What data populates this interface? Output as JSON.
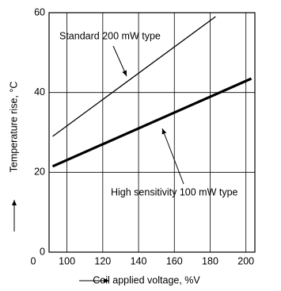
{
  "chart_data": {
    "type": "line",
    "xlabel": "Coil applied voltage, %V",
    "ylabel": "Temperature rise, °C",
    "annotations": [
      "Standard 200 mW type",
      "High sensitivity 100 mW type"
    ],
    "series": [
      {
        "name": "Standard 200 mW type",
        "color": "#000000",
        "x": [
          92,
          183
        ],
        "values": [
          29,
          59
        ]
      },
      {
        "name": "High sensitivity 100 mW type",
        "color": "#000000",
        "x": [
          92,
          203
        ],
        "values": [
          21.5,
          43.5
        ]
      }
    ],
    "xlim": [
      90,
      205
    ],
    "xticks": [
      {
        "value": 90,
        "label": "0"
      },
      100,
      120,
      140,
      160,
      180,
      200
    ],
    "ylim": [
      0,
      60
    ],
    "yticks": [
      0,
      20,
      40,
      60
    ],
    "grid": true
  }
}
